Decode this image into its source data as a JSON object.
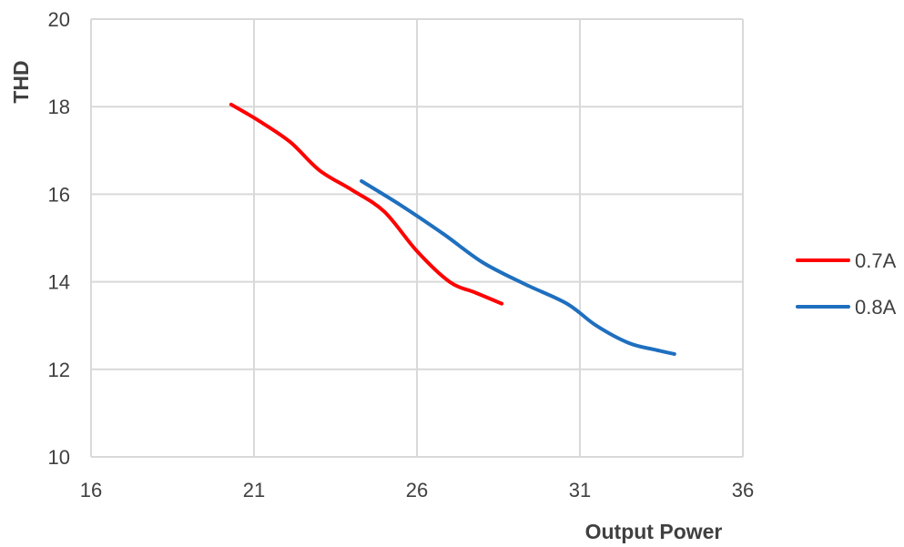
{
  "chart_data": {
    "type": "line",
    "title": "",
    "xlabel": "Output Power",
    "ylabel": "THD",
    "xlim": [
      16,
      36
    ],
    "ylim": [
      10,
      20
    ],
    "x_ticks": [
      16,
      21,
      26,
      31,
      36
    ],
    "y_ticks": [
      10,
      12,
      14,
      16,
      18,
      20
    ],
    "x_tick_labels": [
      "16",
      "21",
      "26",
      "31",
      "36"
    ],
    "y_tick_labels": [
      "10",
      "12",
      "14",
      "16",
      "18",
      "20"
    ],
    "grid": true,
    "legend_position": "right",
    "series": [
      {
        "name": "0.7A",
        "color": "#ff0000",
        "points": [
          [
            20.3,
            18.05
          ],
          [
            21.1,
            17.7
          ],
          [
            22.1,
            17.2
          ],
          [
            23.0,
            16.55
          ],
          [
            24.0,
            16.1
          ],
          [
            25.0,
            15.6
          ],
          [
            26.0,
            14.7
          ],
          [
            27.0,
            14.0
          ],
          [
            27.8,
            13.75
          ],
          [
            28.6,
            13.5
          ]
        ]
      },
      {
        "name": "0.8A",
        "color": "#1f6fbf",
        "points": [
          [
            24.3,
            16.3
          ],
          [
            25.5,
            15.75
          ],
          [
            26.8,
            15.1
          ],
          [
            28.0,
            14.45
          ],
          [
            29.3,
            13.95
          ],
          [
            30.6,
            13.5
          ],
          [
            31.5,
            13.0
          ],
          [
            32.5,
            12.6
          ],
          [
            33.3,
            12.45
          ],
          [
            33.9,
            12.35
          ]
        ]
      }
    ]
  }
}
